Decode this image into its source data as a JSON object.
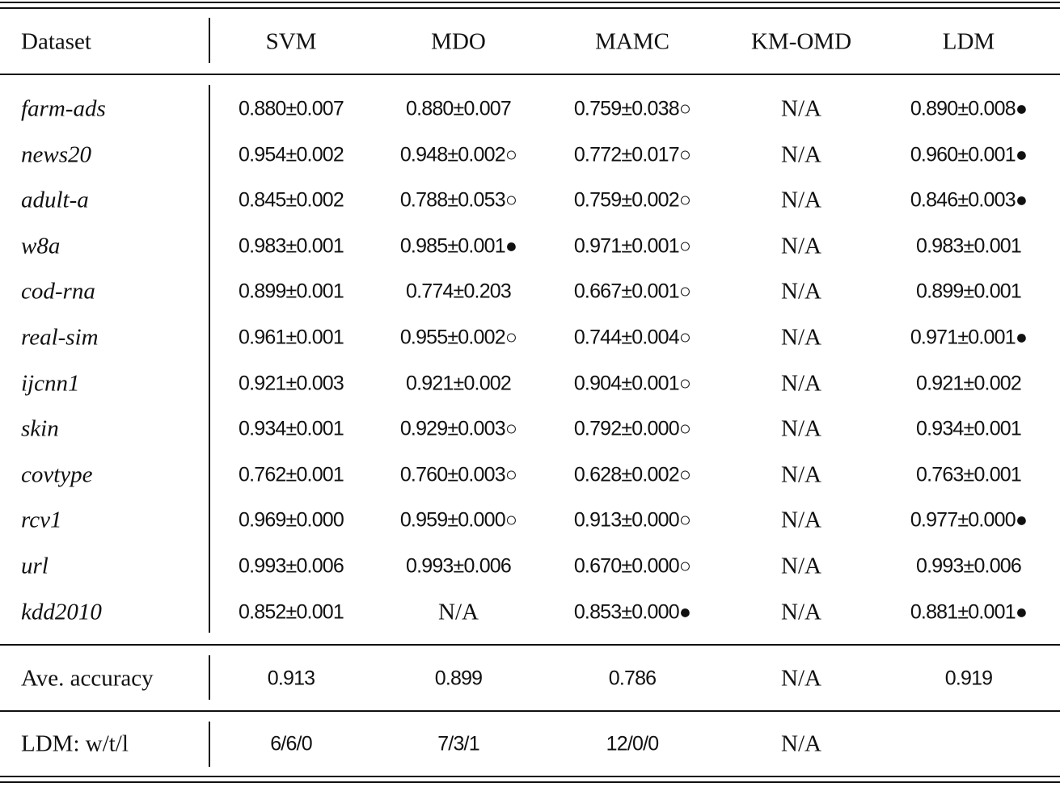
{
  "table": {
    "header": [
      "Dataset",
      "SVM",
      "MDO",
      "MAMC",
      "KM-OMD",
      "LDM"
    ],
    "rows": [
      {
        "dataset": "farm-ads",
        "cells": [
          "0.880±0.007",
          "0.880±0.007",
          "0.759±0.038○",
          "N/A",
          "0.890±0.008●"
        ]
      },
      {
        "dataset": "news20",
        "cells": [
          "0.954±0.002",
          "0.948±0.002○",
          "0.772±0.017○",
          "N/A",
          "0.960±0.001●"
        ]
      },
      {
        "dataset": "adult-a",
        "cells": [
          "0.845±0.002",
          "0.788±0.053○",
          "0.759±0.002○",
          "N/A",
          "0.846±0.003●"
        ]
      },
      {
        "dataset": "w8a",
        "cells": [
          "0.983±0.001",
          "0.985±0.001●",
          "0.971±0.001○",
          "N/A",
          "0.983±0.001"
        ]
      },
      {
        "dataset": "cod-rna",
        "cells": [
          "0.899±0.001",
          "0.774±0.203",
          "0.667±0.001○",
          "N/A",
          "0.899±0.001"
        ]
      },
      {
        "dataset": "real-sim",
        "cells": [
          "0.961±0.001",
          "0.955±0.002○",
          "0.744±0.004○",
          "N/A",
          "0.971±0.001●"
        ]
      },
      {
        "dataset": "ijcnn1",
        "cells": [
          "0.921±0.003",
          "0.921±0.002",
          "0.904±0.001○",
          "N/A",
          "0.921±0.002"
        ]
      },
      {
        "dataset": "skin",
        "cells": [
          "0.934±0.001",
          "0.929±0.003○",
          "0.792±0.000○",
          "N/A",
          "0.934±0.001"
        ]
      },
      {
        "dataset": "covtype",
        "cells": [
          "0.762±0.001",
          "0.760±0.003○",
          "0.628±0.002○",
          "N/A",
          "0.763±0.001"
        ]
      },
      {
        "dataset": "rcv1",
        "cells": [
          "0.969±0.000",
          "0.959±0.000○",
          "0.913±0.000○",
          "N/A",
          "0.977±0.000●"
        ]
      },
      {
        "dataset": "url",
        "cells": [
          "0.993±0.006",
          "0.993±0.006",
          "0.670±0.000○",
          "N/A",
          "0.993±0.006"
        ]
      },
      {
        "dataset": "kdd2010",
        "cells": [
          "0.852±0.001",
          "N/A",
          "0.853±0.000●",
          "N/A",
          "0.881±0.001●"
        ]
      }
    ],
    "summary": [
      {
        "label": "Ave. accuracy",
        "cells": [
          "0.913",
          "0.899",
          "0.786",
          "N/A",
          "0.919"
        ]
      },
      {
        "label": "LDM: w/t/l",
        "cells": [
          "6/6/0",
          "7/3/1",
          "12/0/0",
          "N/A"
        ]
      }
    ]
  }
}
